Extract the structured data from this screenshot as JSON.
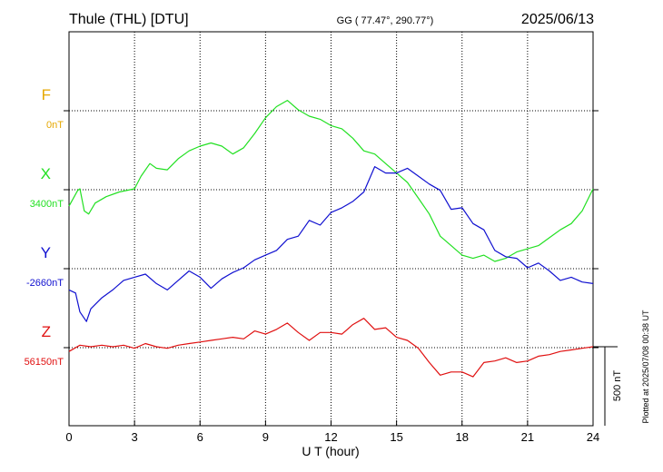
{
  "header": {
    "station": "Thule (THL)  [DTU]",
    "coords": "GG ( 77.47°, 290.77°)",
    "date": "2025/06/13"
  },
  "footer": {
    "xlabel": "U T (hour)",
    "plotted": "Plotted at 2025/07/08 00:38 UT",
    "scale_label": "500 nT"
  },
  "colors": {
    "F": "#e6a800",
    "X": "#22e022",
    "Y": "#1010d0",
    "Z": "#e01010",
    "grid": "#000000"
  },
  "chart_data": {
    "type": "line",
    "xlabel": "U T (hour)",
    "xlim": [
      0,
      24
    ],
    "xticks": [
      0,
      3,
      6,
      9,
      12,
      15,
      18,
      21,
      24
    ],
    "xtick_labels": [
      "0",
      "3",
      "6",
      "9",
      "12",
      "15",
      "18",
      "21",
      "24"
    ],
    "panel_spacing_nT": 500,
    "scale_bar_nT": 500,
    "grid": true,
    "series": [
      {
        "name": "F",
        "baseline_label": "0nT",
        "baseline": 0,
        "color": "#e6a800",
        "x": [],
        "y": []
      },
      {
        "name": "X",
        "baseline_label": "3400nT",
        "baseline": 3400,
        "color": "#22e022",
        "x": [
          0,
          0.4,
          0.5,
          0.7,
          0.9,
          1.2,
          1.7,
          2.3,
          3.0,
          3.3,
          3.7,
          4.0,
          4.5,
          5.0,
          5.5,
          6.0,
          6.5,
          7.0,
          7.5,
          8.0,
          8.5,
          9.0,
          9.5,
          10.0,
          10.5,
          11.0,
          11.5,
          12.0,
          12.5,
          13.0,
          13.5,
          14.0,
          14.5,
          15.0,
          15.5,
          16.0,
          16.5,
          17.0,
          17.5,
          18.0,
          18.5,
          19.0,
          19.5,
          20.0,
          20.5,
          21.0,
          21.5,
          22.0,
          22.5,
          23.0,
          23.5,
          24.0
        ],
        "y": [
          3290,
          3390,
          3400,
          3260,
          3240,
          3310,
          3350,
          3380,
          3400,
          3480,
          3560,
          3530,
          3520,
          3590,
          3640,
          3670,
          3690,
          3670,
          3620,
          3660,
          3750,
          3850,
          3920,
          3960,
          3900,
          3860,
          3840,
          3800,
          3780,
          3720,
          3640,
          3620,
          3560,
          3500,
          3440,
          3340,
          3240,
          3100,
          3040,
          2980,
          2960,
          2980,
          2940,
          2960,
          3000,
          3020,
          3040,
          3090,
          3140,
          3180,
          3260,
          3400
        ]
      },
      {
        "name": "Y",
        "baseline_label": "-2660nT",
        "baseline": -2660,
        "color": "#1010d0",
        "x": [
          0,
          0.3,
          0.5,
          0.8,
          1.0,
          1.5,
          2.0,
          2.5,
          3.0,
          3.5,
          4.0,
          4.5,
          5.0,
          5.5,
          6.0,
          6.5,
          7.0,
          7.5,
          8.0,
          8.5,
          9.0,
          9.5,
          10.0,
          10.5,
          11.0,
          11.5,
          12.0,
          12.5,
          13.0,
          13.5,
          14.0,
          14.5,
          15.0,
          15.5,
          16.0,
          16.5,
          17.0,
          17.5,
          18.0,
          18.5,
          19.0,
          19.5,
          20.0,
          20.5,
          21.0,
          21.5,
          22.0,
          22.5,
          23.0,
          23.5,
          24.0
        ],
        "y": [
          -2800,
          -2820,
          -2940,
          -3000,
          -2920,
          -2850,
          -2800,
          -2740,
          -2720,
          -2700,
          -2760,
          -2800,
          -2740,
          -2680,
          -2720,
          -2790,
          -2730,
          -2690,
          -2660,
          -2610,
          -2580,
          -2550,
          -2480,
          -2460,
          -2360,
          -2390,
          -2310,
          -2280,
          -2240,
          -2180,
          -2020,
          -2060,
          -2060,
          -2030,
          -2080,
          -2130,
          -2170,
          -2290,
          -2280,
          -2380,
          -2420,
          -2550,
          -2590,
          -2600,
          -2660,
          -2630,
          -2680,
          -2740,
          -2720,
          -2750,
          -2760
        ]
      },
      {
        "name": "Z",
        "baseline_label": "56150nT",
        "baseline": 56150,
        "color": "#e01010",
        "x": [
          0,
          0.5,
          1.0,
          1.5,
          2.0,
          2.5,
          3.0,
          3.5,
          4.0,
          4.5,
          5.0,
          5.5,
          6.0,
          6.5,
          7.0,
          7.5,
          8.0,
          8.5,
          9.0,
          9.5,
          10.0,
          10.5,
          11.0,
          11.5,
          12.0,
          12.5,
          13.0,
          13.5,
          14.0,
          14.5,
          15.0,
          15.5,
          16.0,
          16.5,
          17.0,
          17.5,
          18.0,
          18.5,
          19.0,
          19.5,
          20.0,
          20.5,
          21.0,
          21.5,
          22.0,
          22.5,
          23.0,
          23.5,
          24.0
        ],
        "y": [
          56120,
          56160,
          56150,
          56160,
          56150,
          56160,
          56140,
          56170,
          56150,
          56140,
          56160,
          56170,
          56180,
          56190,
          56200,
          56210,
          56200,
          56250,
          56230,
          56260,
          56300,
          56240,
          56190,
          56240,
          56240,
          56230,
          56290,
          56330,
          56260,
          56270,
          56210,
          56190,
          56140,
          56050,
          55970,
          55990,
          55990,
          55960,
          56050,
          56060,
          56080,
          56050,
          56060,
          56090,
          56100,
          56120,
          56130,
          56140,
          56150
        ]
      }
    ]
  }
}
